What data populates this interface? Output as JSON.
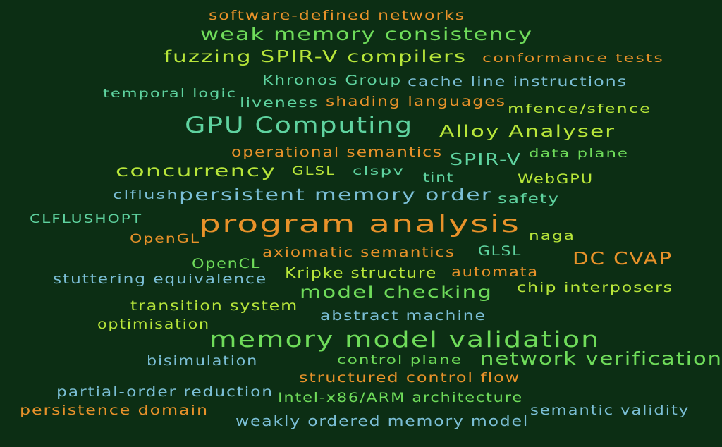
{
  "colors": {
    "background": "#0c2e14",
    "orange": "#e8922a",
    "lime": "#b8e63a",
    "green": "#6fdc5a",
    "teal": "#5fd3a0",
    "skyblue": "#7bbfd6"
  },
  "words": [
    {
      "text": "software-defined networks",
      "color": "orange"
    },
    {
      "text": "weak memory consistency",
      "color": "green"
    },
    {
      "text": "fuzzing SPIR-V compilers",
      "color": "lime"
    },
    {
      "text": "conformance tests",
      "color": "orange"
    },
    {
      "text": "Khronos Group",
      "color": "teal"
    },
    {
      "text": "cache line instructions",
      "color": "skyblue"
    },
    {
      "text": "temporal logic",
      "color": "teal"
    },
    {
      "text": "liveness",
      "color": "teal"
    },
    {
      "text": "shading languages",
      "color": "orange"
    },
    {
      "text": "mfence/sfence",
      "color": "lime"
    },
    {
      "text": "GPU Computing",
      "color": "teal"
    },
    {
      "text": "Alloy Analyser",
      "color": "lime"
    },
    {
      "text": "operational semantics",
      "color": "orange"
    },
    {
      "text": "SPIR-V",
      "color": "teal"
    },
    {
      "text": "data plane",
      "color": "green"
    },
    {
      "text": "concurrency",
      "color": "lime"
    },
    {
      "text": "GLSL",
      "color": "lime"
    },
    {
      "text": "clspv",
      "color": "teal"
    },
    {
      "text": "tint",
      "color": "teal"
    },
    {
      "text": "WebGPU",
      "color": "lime"
    },
    {
      "text": "clflush",
      "color": "skyblue"
    },
    {
      "text": "persistent memory order",
      "color": "skyblue"
    },
    {
      "text": "safety",
      "color": "teal"
    },
    {
      "text": "CLFLUSHOPT",
      "color": "teal"
    },
    {
      "text": "program analysis",
      "color": "orange"
    },
    {
      "text": "OpenGL",
      "color": "orange"
    },
    {
      "text": "naga",
      "color": "lime"
    },
    {
      "text": "axiomatic semantics",
      "color": "orange"
    },
    {
      "text": "GLSL",
      "color": "teal"
    },
    {
      "text": "DC CVAP",
      "color": "orange"
    },
    {
      "text": "OpenCL",
      "color": "green"
    },
    {
      "text": "Kripke structure",
      "color": "lime"
    },
    {
      "text": "automata",
      "color": "orange"
    },
    {
      "text": "stuttering equivalence",
      "color": "skyblue"
    },
    {
      "text": "model checking",
      "color": "green"
    },
    {
      "text": "chip interposers",
      "color": "lime"
    },
    {
      "text": "transition system",
      "color": "lime"
    },
    {
      "text": "abstract machine",
      "color": "skyblue"
    },
    {
      "text": "optimisation",
      "color": "lime"
    },
    {
      "text": "memory model validation",
      "color": "green"
    },
    {
      "text": "network verification",
      "color": "green"
    },
    {
      "text": "bisimulation",
      "color": "skyblue"
    },
    {
      "text": "control plane",
      "color": "green"
    },
    {
      "text": "structured control flow",
      "color": "orange"
    },
    {
      "text": "partial-order reduction",
      "color": "skyblue"
    },
    {
      "text": "Intel-x86/ARM architecture",
      "color": "green"
    },
    {
      "text": "persistence domain",
      "color": "orange"
    },
    {
      "text": "semantic validity",
      "color": "skyblue"
    },
    {
      "text": "weakly ordered memory model",
      "color": "skyblue"
    }
  ]
}
